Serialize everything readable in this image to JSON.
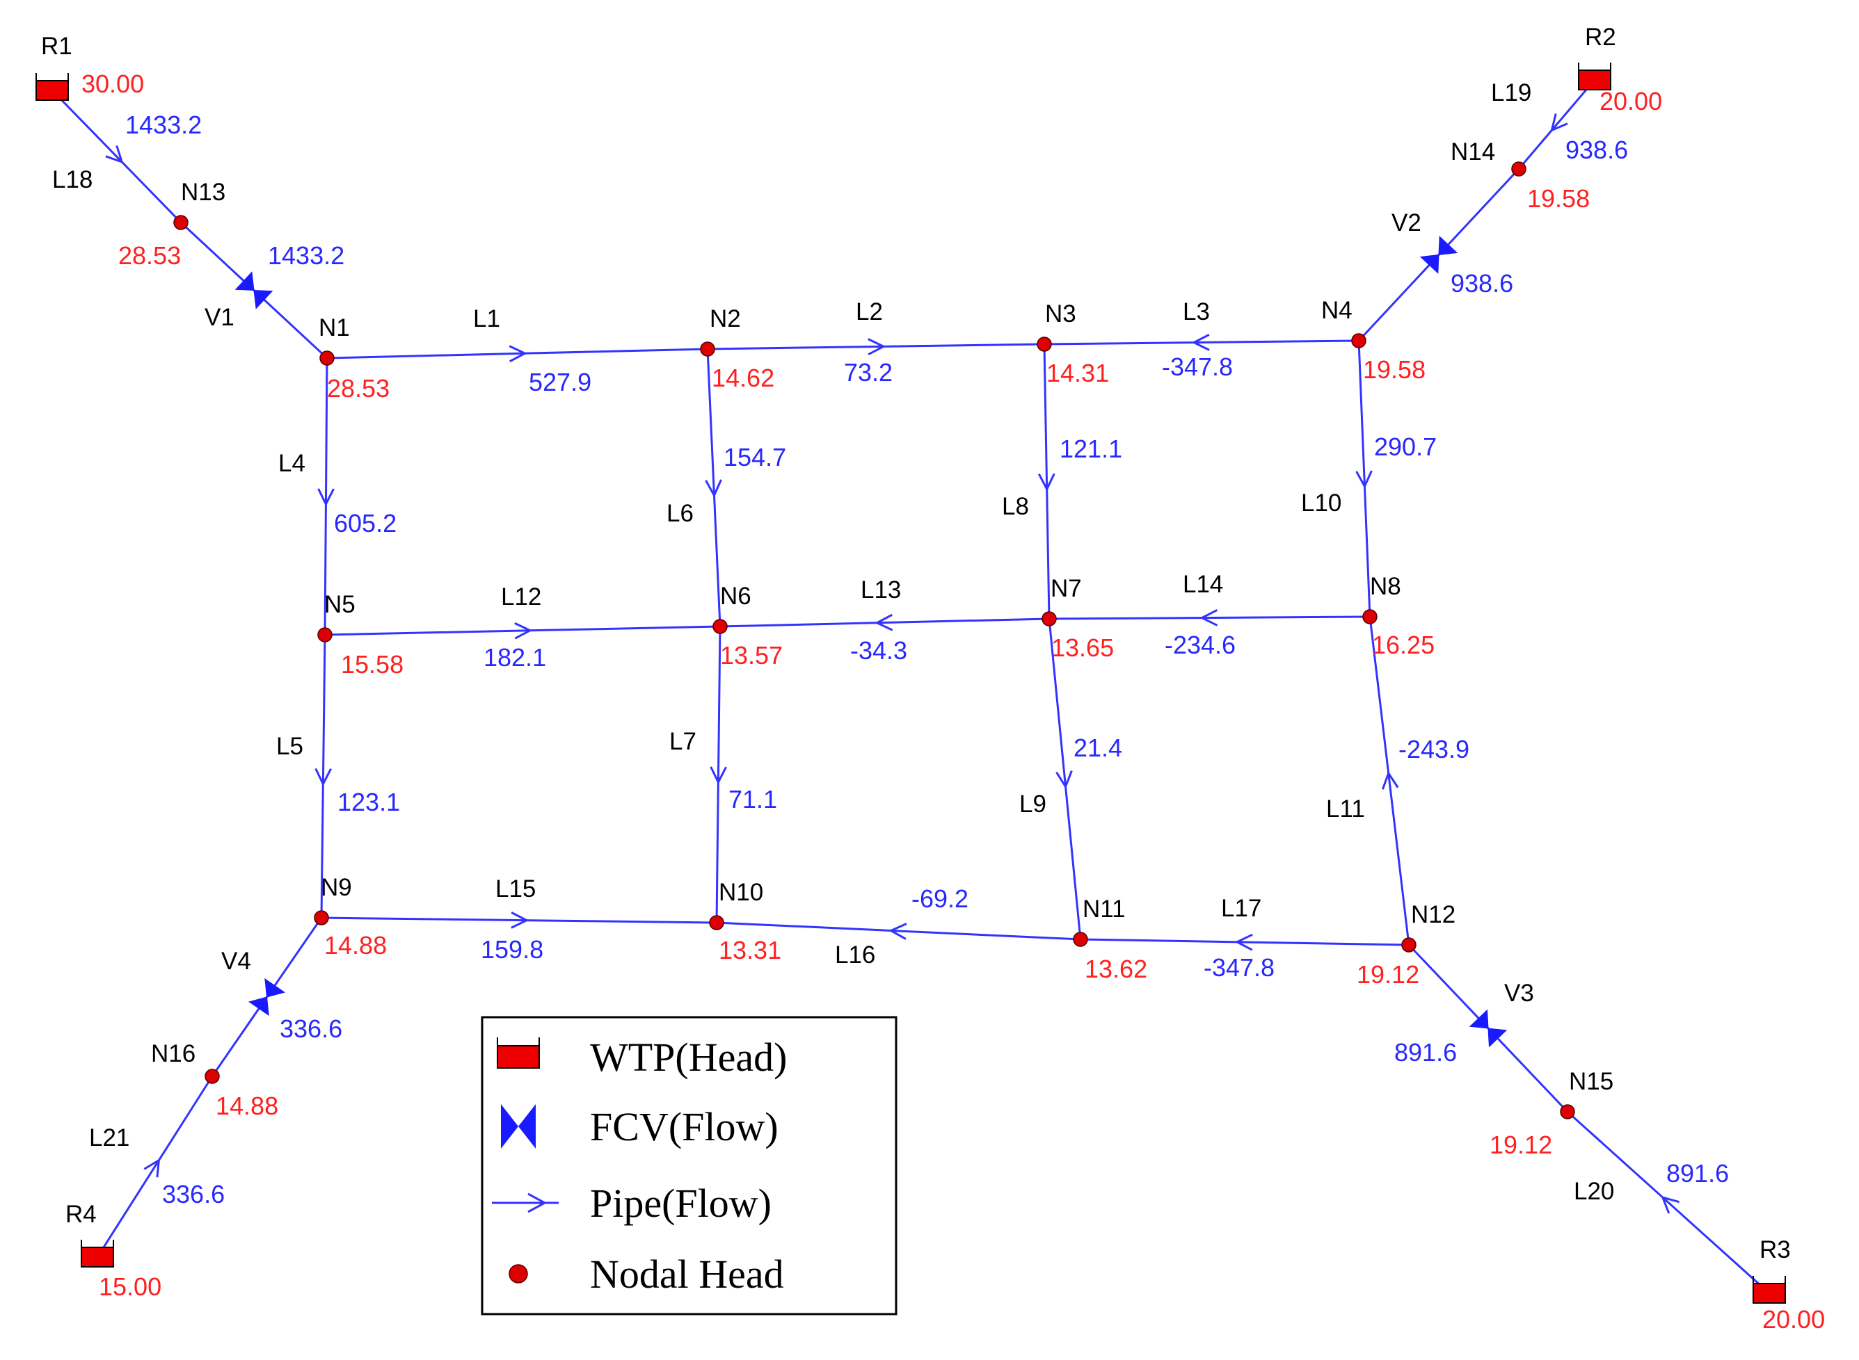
{
  "colors": {
    "pipe": "#3333ff",
    "flow_text": "#2727ff",
    "head_text": "#ff2020",
    "node_fill": "#dd0000",
    "reservoir_fill": "#ee0000",
    "valve_fill": "#1a1aff",
    "label_text": "#000000"
  },
  "nodes": [
    {
      "id": "N1",
      "head": "28.53"
    },
    {
      "id": "N2",
      "head": "14.62"
    },
    {
      "id": "N3",
      "head": "14.31"
    },
    {
      "id": "N4",
      "head": "19.58"
    },
    {
      "id": "N5",
      "head": "15.58"
    },
    {
      "id": "N6",
      "head": "13.57"
    },
    {
      "id": "N7",
      "head": "13.65"
    },
    {
      "id": "N8",
      "head": "16.25"
    },
    {
      "id": "N9",
      "head": "14.88"
    },
    {
      "id": "N10",
      "head": "13.31"
    },
    {
      "id": "N11",
      "head": "13.62"
    },
    {
      "id": "N12",
      "head": "19.12"
    },
    {
      "id": "N13",
      "head": "28.53"
    },
    {
      "id": "N14",
      "head": "19.58"
    },
    {
      "id": "N15",
      "head": "19.12"
    },
    {
      "id": "N16",
      "head": "14.88"
    }
  ],
  "reservoirs": [
    {
      "id": "R1",
      "head": "30.00"
    },
    {
      "id": "R2",
      "head": "20.00"
    },
    {
      "id": "R3",
      "head": "20.00"
    },
    {
      "id": "R4",
      "head": "15.00"
    }
  ],
  "pipes": [
    {
      "id": "L1",
      "from": "N1",
      "to": "N2",
      "flow": "527.9"
    },
    {
      "id": "L2",
      "from": "N2",
      "to": "N3",
      "flow": "73.2"
    },
    {
      "id": "L3",
      "from": "N3",
      "to": "N4",
      "flow": "-347.8"
    },
    {
      "id": "L4",
      "from": "N1",
      "to": "N5",
      "flow": "605.2"
    },
    {
      "id": "L5",
      "from": "N5",
      "to": "N9",
      "flow": "123.1"
    },
    {
      "id": "L6",
      "from": "N2",
      "to": "N6",
      "flow": "154.7"
    },
    {
      "id": "L7",
      "from": "N6",
      "to": "N10",
      "flow": "71.1"
    },
    {
      "id": "L8",
      "from": "N3",
      "to": "N7",
      "flow": "121.1"
    },
    {
      "id": "L9",
      "from": "N7",
      "to": "N11",
      "flow": "21.4"
    },
    {
      "id": "L10",
      "from": "N4",
      "to": "N8",
      "flow": "290.7"
    },
    {
      "id": "L11",
      "from": "N8",
      "to": "N12",
      "flow": "-243.9"
    },
    {
      "id": "L12",
      "from": "N5",
      "to": "N6",
      "flow": "182.1"
    },
    {
      "id": "L13",
      "from": "N6",
      "to": "N7",
      "flow": "-34.3"
    },
    {
      "id": "L14",
      "from": "N7",
      "to": "N8",
      "flow": "-234.6"
    },
    {
      "id": "L15",
      "from": "N9",
      "to": "N10",
      "flow": "159.8"
    },
    {
      "id": "L16",
      "from": "N10",
      "to": "N11",
      "flow": "-69.2"
    },
    {
      "id": "L17",
      "from": "N11",
      "to": "N12",
      "flow": "-347.8"
    },
    {
      "id": "L18",
      "from": "R1",
      "to": "N13",
      "flow": "1433.2"
    },
    {
      "id": "L19",
      "from": "R2",
      "to": "N14",
      "flow": "938.6"
    },
    {
      "id": "L20",
      "from": "R3",
      "to": "N15",
      "flow": "891.6"
    },
    {
      "id": "L21",
      "from": "R4",
      "to": "N16",
      "flow": "336.6"
    }
  ],
  "valves": [
    {
      "id": "V1",
      "from": "N13",
      "to": "N1",
      "flow": "1433.2"
    },
    {
      "id": "V2",
      "from": "N14",
      "to": "N4",
      "flow": "938.6"
    },
    {
      "id": "V3",
      "from": "N15",
      "to": "N12",
      "flow": "891.6"
    },
    {
      "id": "V4",
      "from": "N16",
      "to": "N9",
      "flow": "336.6"
    }
  ],
  "legend": {
    "items": [
      {
        "symbol": "wtp",
        "label": "WTP(Head)"
      },
      {
        "symbol": "fcv",
        "label": "FCV(Flow)"
      },
      {
        "symbol": "pipe",
        "label": "Pipe(Flow)"
      },
      {
        "symbol": "node",
        "label": "Nodal Head"
      }
    ]
  }
}
